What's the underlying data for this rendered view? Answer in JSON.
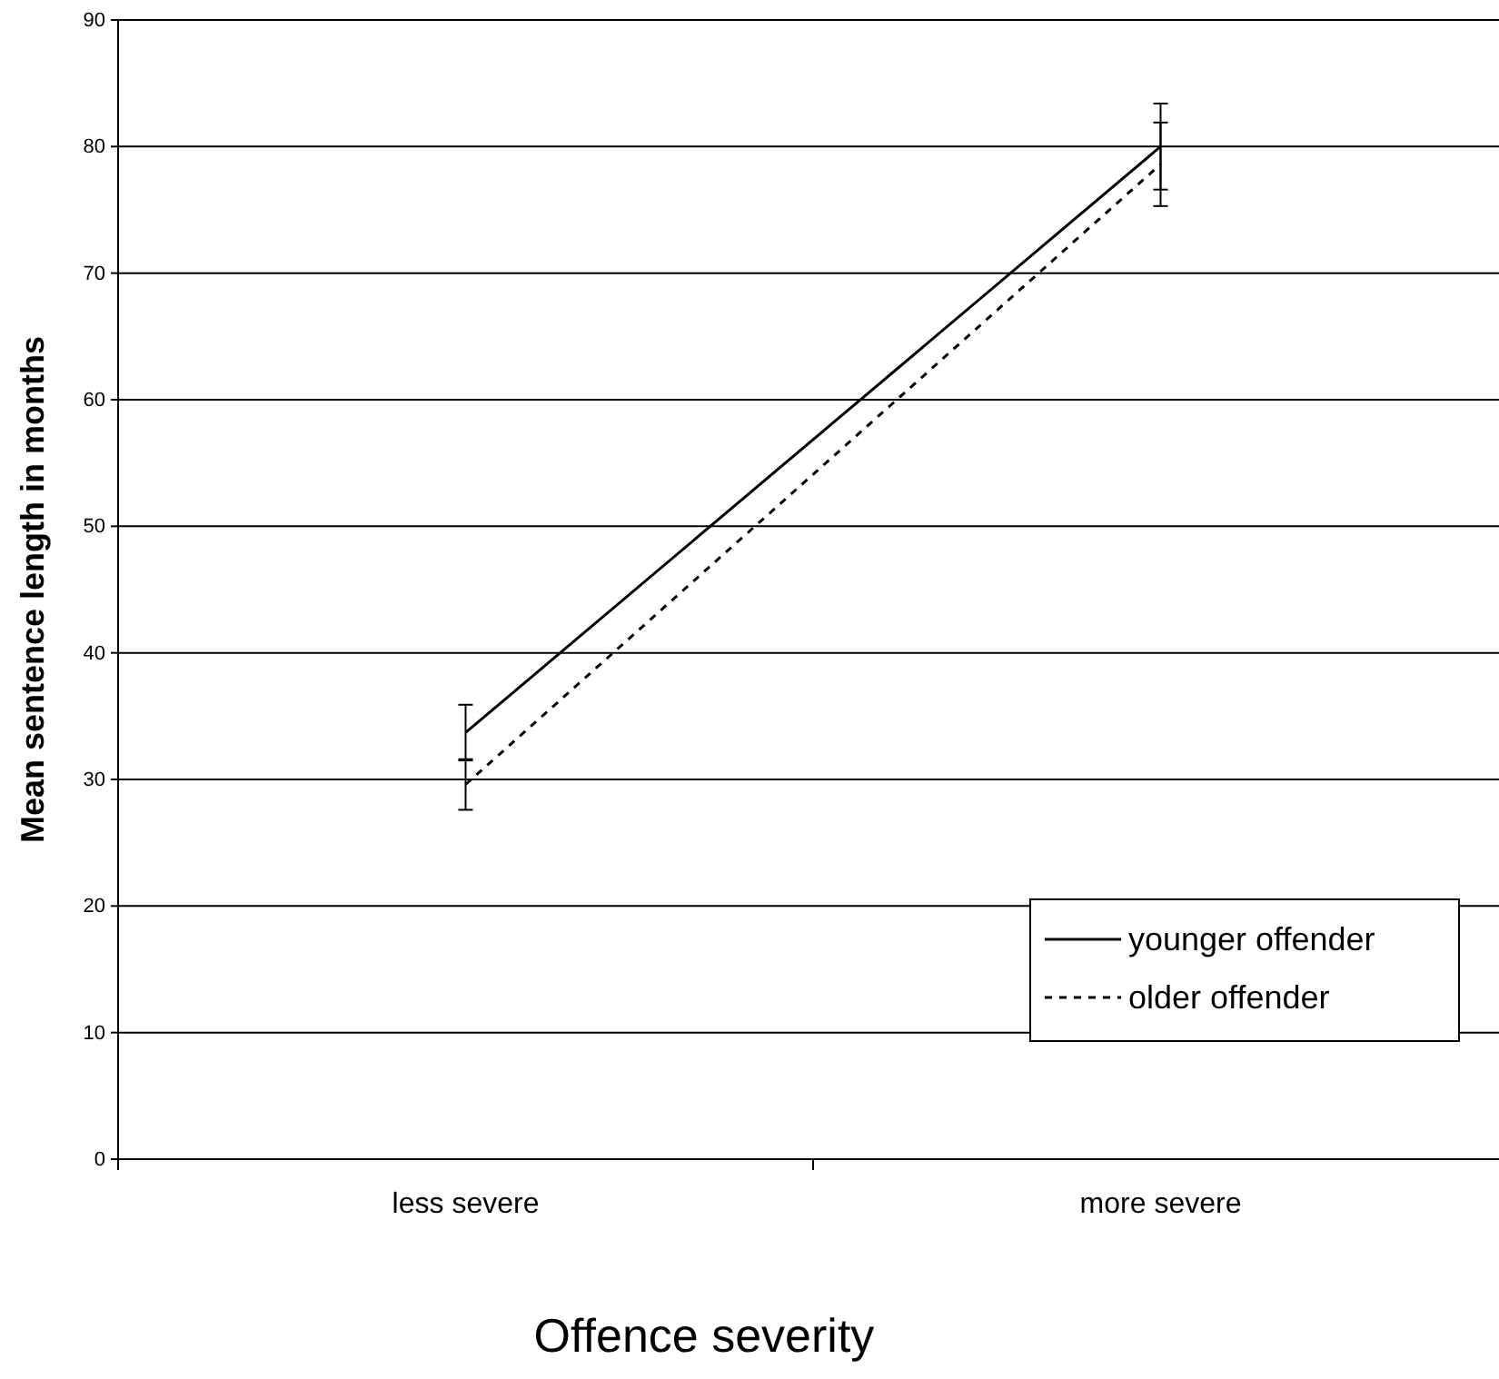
{
  "chart_data": {
    "type": "line",
    "xlabel": "Offence severity",
    "ylabel": "Mean sentence length in months",
    "categories": [
      "less severe",
      "more severe"
    ],
    "series": [
      {
        "name": "younger offender",
        "color": "#000000",
        "values": [
          33.7,
          80
        ],
        "errors": [
          2.2,
          3.4
        ],
        "line_style": "solid"
      },
      {
        "name": "older offender",
        "color": "#000000",
        "values": [
          29.6,
          78.6
        ],
        "errors": [
          2,
          3.3
        ],
        "line_style": "dashed"
      }
    ],
    "ylim": [
      0,
      90
    ],
    "yticks": [
      0,
      10,
      20,
      30,
      40,
      50,
      60,
      70,
      80,
      90
    ],
    "grid": "y",
    "legend": "bottom right",
    "marker": "none"
  }
}
